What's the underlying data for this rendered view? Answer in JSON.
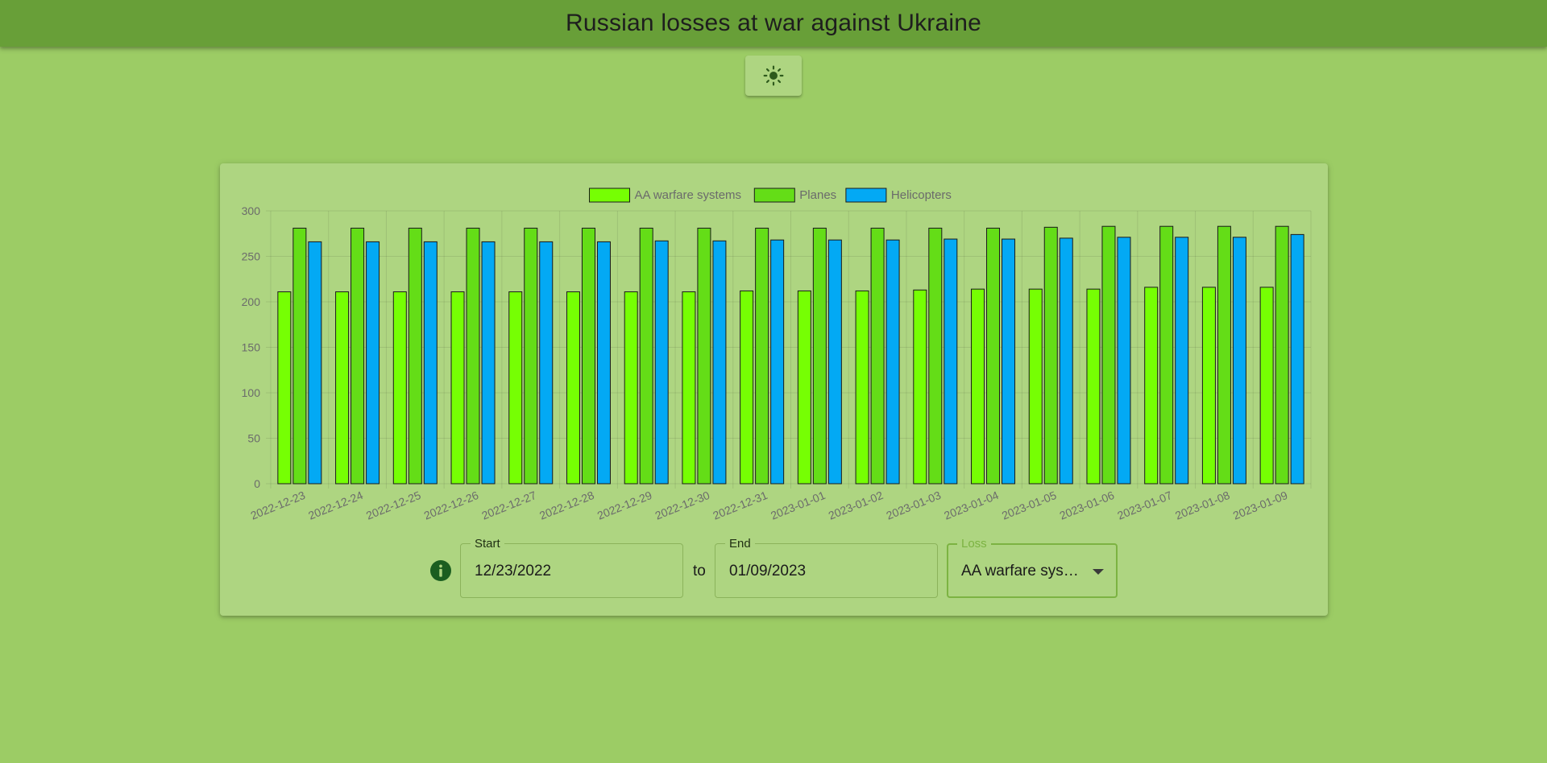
{
  "header": {
    "title": "Russian losses at war against Ukraine"
  },
  "theme_toggle": {
    "icon": "sun-icon"
  },
  "chart_data": {
    "type": "bar",
    "categories": [
      "2022-12-23",
      "2022-12-24",
      "2022-12-25",
      "2022-12-26",
      "2022-12-27",
      "2022-12-28",
      "2022-12-29",
      "2022-12-30",
      "2022-12-31",
      "2023-01-01",
      "2023-01-02",
      "2023-01-03",
      "2023-01-04",
      "2023-01-05",
      "2023-01-06",
      "2023-01-07",
      "2023-01-08",
      "2023-01-09"
    ],
    "series": [
      {
        "name": "AA warfare systems",
        "color": "#76ff03",
        "values": [
          211,
          211,
          211,
          211,
          211,
          211,
          211,
          211,
          212,
          212,
          212,
          213,
          214,
          214,
          214,
          216,
          216,
          216
        ]
      },
      {
        "name": "Planes",
        "color": "#64dd17",
        "values": [
          281,
          281,
          281,
          281,
          281,
          281,
          281,
          281,
          281,
          281,
          281,
          281,
          281,
          282,
          283,
          283,
          283,
          283
        ]
      },
      {
        "name": "Helicopters",
        "color": "#03a9f4",
        "values": [
          266,
          266,
          266,
          266,
          266,
          266,
          267,
          267,
          268,
          268,
          268,
          269,
          269,
          270,
          271,
          271,
          271,
          274
        ]
      }
    ],
    "ylim": [
      0,
      300
    ],
    "yticks": [
      0,
      50,
      100,
      150,
      200,
      250,
      300
    ],
    "grid": true,
    "legend": "top-center",
    "xlabel": "",
    "ylabel": ""
  },
  "controls": {
    "info_icon": "info-icon",
    "start": {
      "label": "Start",
      "value": "12/23/2022"
    },
    "separator": "to",
    "end": {
      "label": "End",
      "value": "01/09/2023"
    },
    "loss": {
      "label": "Loss",
      "value": "AA warfare systems"
    }
  }
}
